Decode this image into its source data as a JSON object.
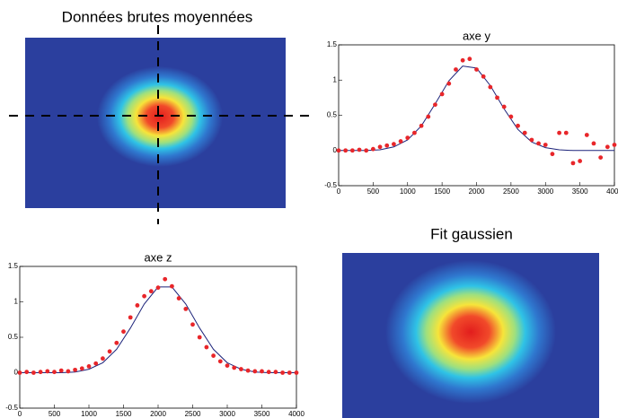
{
  "chart_data": [
    {
      "type": "heatmap",
      "title": "Données brutes moyennées"
    },
    {
      "type": "line",
      "title": "axe y",
      "xlim": [
        0,
        4000
      ],
      "xticks": [
        0,
        500,
        1000,
        1500,
        2000,
        2500,
        3000,
        3500,
        4000
      ],
      "ylim": [
        -0.5,
        1.5
      ],
      "yticks": [
        -0.5,
        0,
        0.5,
        1,
        1.5
      ],
      "series": [
        {
          "type": "line",
          "color": "#1c237a",
          "x": [
            0,
            200,
            400,
            600,
            800,
            1000,
            1200,
            1400,
            1600,
            1800,
            2000,
            2200,
            2400,
            2600,
            2800,
            3000,
            3200,
            3400,
            3600,
            3800,
            4000
          ],
          "values": [
            0,
            0,
            0,
            0.01,
            0.05,
            0.15,
            0.35,
            0.66,
            0.99,
            1.2,
            1.17,
            0.92,
            0.59,
            0.3,
            0.12,
            0.04,
            0.01,
            0,
            0,
            0,
            0
          ]
        },
        {
          "type": "scatter",
          "color": "#e8262a",
          "x": [
            0,
            100,
            200,
            300,
            400,
            500,
            600,
            700,
            800,
            900,
            1000,
            1100,
            1200,
            1300,
            1400,
            1500,
            1600,
            1700,
            1800,
            1900,
            2000,
            2100,
            2200,
            2300,
            2400,
            2500,
            2600,
            2700,
            2800,
            2900,
            3000,
            3100,
            3200,
            3300,
            3400,
            3500,
            3600,
            3700,
            3800,
            3900,
            4000
          ],
          "values": [
            0,
            0,
            0,
            0.01,
            0,
            0.02,
            0.05,
            0.07,
            0.09,
            0.13,
            0.18,
            0.25,
            0.35,
            0.48,
            0.65,
            0.8,
            0.95,
            1.15,
            1.28,
            1.3,
            1.15,
            1.05,
            0.9,
            0.75,
            0.62,
            0.48,
            0.35,
            0.25,
            0.15,
            0.1,
            0.08,
            -0.05,
            0.25,
            0.25,
            -0.18,
            -0.15,
            0.22,
            0.1,
            -0.1,
            0.05,
            0.08
          ]
        }
      ]
    },
    {
      "type": "line",
      "title": "axe z",
      "xlim": [
        0,
        4000
      ],
      "xticks": [
        0,
        500,
        1000,
        1500,
        2000,
        2500,
        3000,
        3500,
        4000
      ],
      "ylim": [
        -0.5,
        1.5
      ],
      "yticks": [
        -0.5,
        0,
        0.5,
        1,
        1.5
      ],
      "series": [
        {
          "type": "line",
          "color": "#1c237a",
          "x": [
            0,
            200,
            400,
            600,
            800,
            1000,
            1200,
            1400,
            1600,
            1800,
            2000,
            2200,
            2400,
            2600,
            2800,
            3000,
            3200,
            3400,
            3600,
            3800,
            4000
          ],
          "values": [
            0,
            0,
            0,
            0,
            0.01,
            0.05,
            0.14,
            0.33,
            0.63,
            0.97,
            1.21,
            1.21,
            0.97,
            0.63,
            0.33,
            0.14,
            0.05,
            0.01,
            0,
            0,
            0
          ]
        },
        {
          "type": "scatter",
          "color": "#e8262a",
          "x": [
            0,
            100,
            200,
            300,
            400,
            500,
            600,
            700,
            800,
            900,
            1000,
            1100,
            1200,
            1300,
            1400,
            1500,
            1600,
            1700,
            1800,
            1900,
            2000,
            2100,
            2200,
            2300,
            2400,
            2500,
            2600,
            2700,
            2800,
            2900,
            3000,
            3100,
            3200,
            3300,
            3400,
            3500,
            3600,
            3700,
            3800,
            3900,
            4000
          ],
          "values": [
            0,
            0.01,
            0,
            0.01,
            0.02,
            0.01,
            0.03,
            0.02,
            0.04,
            0.06,
            0.09,
            0.13,
            0.2,
            0.3,
            0.42,
            0.58,
            0.78,
            0.95,
            1.08,
            1.15,
            1.2,
            1.32,
            1.22,
            1.05,
            0.9,
            0.68,
            0.5,
            0.36,
            0.24,
            0.16,
            0.1,
            0.07,
            0.05,
            0.03,
            0.02,
            0.02,
            0.01,
            0.01,
            0,
            0,
            0
          ]
        }
      ]
    },
    {
      "type": "heatmap",
      "title": "Fit gaussien"
    }
  ]
}
